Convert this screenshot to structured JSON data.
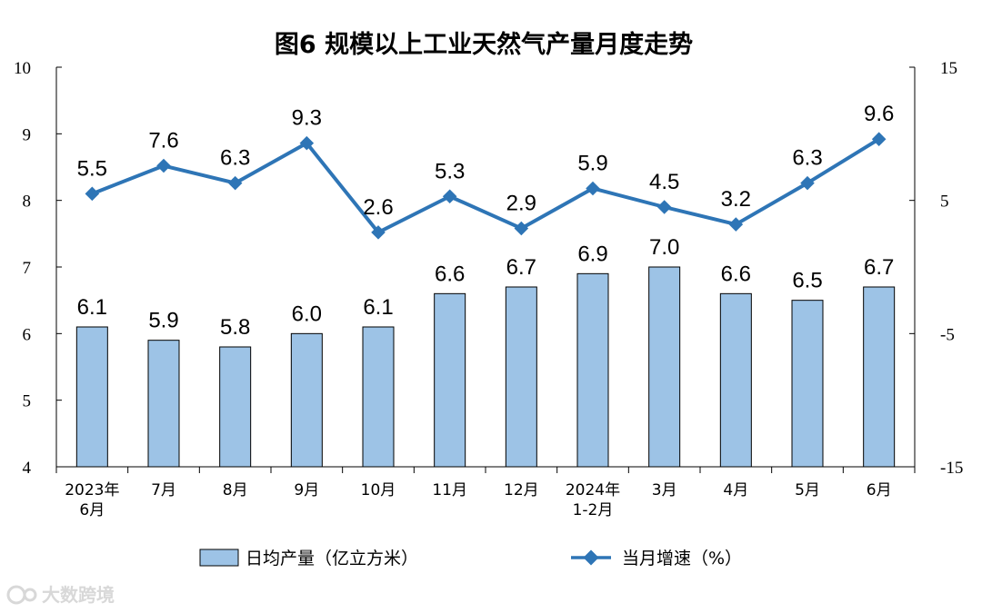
{
  "chart_data": {
    "type": "bar+line",
    "title": "图6  规模以上工业天然气产量月度走势",
    "categories": [
      [
        "2023年",
        "6月"
      ],
      [
        "7月"
      ],
      [
        "8月"
      ],
      [
        "9月"
      ],
      [
        "10月"
      ],
      [
        "11月"
      ],
      [
        "12月"
      ],
      [
        "2024年",
        "1-2月"
      ],
      [
        "3月"
      ],
      [
        "4月"
      ],
      [
        "5月"
      ],
      [
        "6月"
      ]
    ],
    "series": [
      {
        "name": "日均产量（亿立方米）",
        "type": "bar",
        "axis": "left",
        "color": "#9dc3e6",
        "values": [
          6.1,
          5.9,
          5.8,
          6.0,
          6.1,
          6.6,
          6.7,
          6.9,
          7.0,
          6.6,
          6.5,
          6.7
        ],
        "labels": [
          "6.1",
          "5.9",
          "5.8",
          "6.0",
          "6.1",
          "6.6",
          "6.7",
          "6.9",
          "7.0",
          "6.6",
          "6.5",
          "6.7"
        ]
      },
      {
        "name": "当月增速（%）",
        "type": "line",
        "axis": "right",
        "color": "#2e75b6",
        "values": [
          5.5,
          7.6,
          6.3,
          9.3,
          2.6,
          5.3,
          2.9,
          5.9,
          4.5,
          3.2,
          6.3,
          9.6
        ],
        "labels": [
          "5.5",
          "7.6",
          "6.3",
          "9.3",
          "2.6",
          "5.3",
          "2.9",
          "5.9",
          "4.5",
          "3.2",
          "6.3",
          "9.6"
        ]
      }
    ],
    "y_left": {
      "range": [
        4,
        10
      ],
      "ticks": [
        "4",
        "5",
        "6",
        "7",
        "8",
        "9",
        "10"
      ]
    },
    "y_right": {
      "range": [
        -15,
        15
      ],
      "ticks": [
        "-15",
        "-5",
        "5",
        "15"
      ]
    },
    "grid": false,
    "legend_placement": "bottom"
  },
  "watermark": "大数跨境"
}
